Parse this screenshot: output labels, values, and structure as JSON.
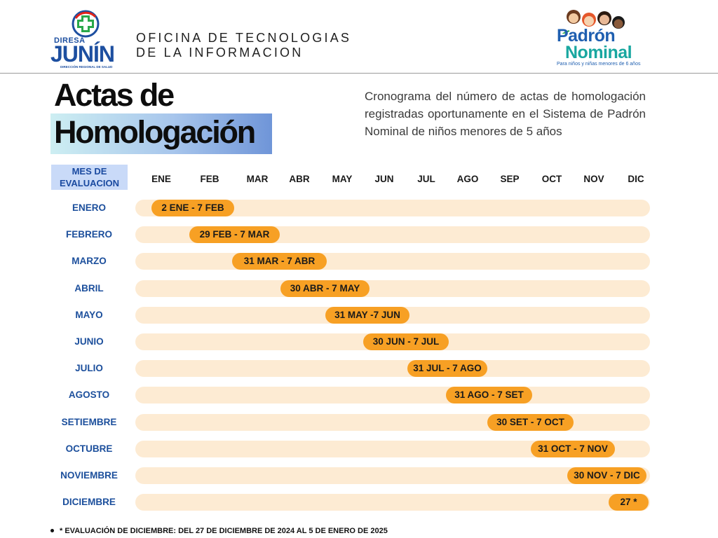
{
  "header": {
    "logo_left": {
      "brand_small": "DIRESA",
      "brand_big": "JUNÍN",
      "brand_caption": "DIRECCIÓN REGIONAL DE SALUD"
    },
    "office_line1": "OFICINA DE TECNOLOGIAS",
    "office_line2": "DE LA INFORMACION",
    "logo_right": {
      "line1": "Padrón",
      "line2": "Nominal",
      "caption": "Para niños y niñas menores de 6 años"
    }
  },
  "title": {
    "line1": "Actas de",
    "line2": "Homologación"
  },
  "description": "Cronograma del número de actas de homologación registradas oportunamente en el Sistema de Padrón Nominal de niños menores de 5 años",
  "table": {
    "row_header": "MES DE EVALUACION",
    "months": [
      "ENE",
      "FEB",
      "MAR",
      "ABR",
      "MAY",
      "JUN",
      "JUL",
      "AGO",
      "SEP",
      "OCT",
      "NOV",
      "DIC"
    ],
    "rows": [
      {
        "label": "ENERO",
        "range": "2 ENE - 7 FEB"
      },
      {
        "label": "FEBRERO",
        "range": "29 FEB - 7 MAR"
      },
      {
        "label": "MARZO",
        "range": "31 MAR - 7 ABR"
      },
      {
        "label": "ABRIL",
        "range": "30 ABR - 7 MAY"
      },
      {
        "label": "MAYO",
        "range": "31 MAY -7 JUN"
      },
      {
        "label": "JUNIO",
        "range": "30 JUN - 7 JUL"
      },
      {
        "label": "JULIO",
        "range": "31 JUL - 7 AGO"
      },
      {
        "label": "AGOSTO",
        "range": "31 AGO - 7 SET"
      },
      {
        "label": "SETIEMBRE",
        "range": "30 SET - 7 OCT"
      },
      {
        "label": "OCTUBRE",
        "range": "31 OCT - 7 NOV"
      },
      {
        "label": "NOVIEMBRE",
        "range": "30 NOV - 7 DIC"
      },
      {
        "label": "DICIEMBRE",
        "range": "27 *"
      }
    ]
  },
  "footnote": "* EVALUACIÓN DE DICIEMBRE: DEL 27 DE DICIEMBRE DE 2024 AL 5 DE ENERO DE 2025",
  "colors": {
    "accent_orange": "#f7a024",
    "track": "#fdebd3",
    "label_blue": "#1c4f9c",
    "header_blue": "#c9daf8"
  }
}
